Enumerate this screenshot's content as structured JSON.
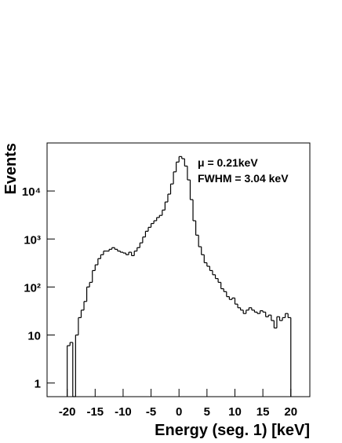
{
  "chart_data": {
    "type": "histogram",
    "xlabel": "Energy (seg. 1) [keV]",
    "ylabel": "Events",
    "annotations": [
      "μ = 0.21keV",
      "FWHM =  3.04 keV"
    ],
    "log_y": true,
    "color": "#000000",
    "bins": [
      -20,
      -19.5,
      -19,
      -18.5,
      -18,
      -17.5,
      -17,
      -16.5,
      -16,
      -15.5,
      -15,
      -14.5,
      -14,
      -13.5,
      -13,
      -12.5,
      -12,
      -11.5,
      -11,
      -10.5,
      -10,
      -9.5,
      -9,
      -8.5,
      -8,
      -7.5,
      -7,
      -6.5,
      -6,
      -5.5,
      -5,
      -4.5,
      -4,
      -3.5,
      -3,
      -2.5,
      -2,
      -1.5,
      -1,
      -0.5,
      0,
      0.5,
      1,
      1.5,
      2,
      2.5,
      3,
      3.5,
      4,
      4.5,
      5,
      5.5,
      6,
      6.5,
      7,
      7.5,
      8,
      8.5,
      9,
      9.5,
      10,
      10.5,
      11,
      11.5,
      12,
      12.5,
      13,
      13.5,
      14,
      14.5,
      15,
      15.5,
      16,
      16.5,
      17,
      17.5,
      18,
      18.5,
      19,
      19.5,
      20
    ],
    "values": [
      6,
      7,
      0,
      10,
      23,
      33,
      50,
      100,
      125,
      220,
      290,
      390,
      470,
      560,
      560,
      610,
      660,
      610,
      560,
      530,
      510,
      470,
      530,
      450,
      560,
      660,
      830,
      1100,
      1450,
      1750,
      2100,
      2400,
      2800,
      3100,
      4000,
      5900,
      8600,
      14000,
      25000,
      40000,
      52000,
      47000,
      33000,
      17000,
      6600,
      2400,
      1200,
      690,
      470,
      320,
      270,
      220,
      180,
      150,
      125,
      92,
      80,
      63,
      55,
      59,
      44,
      37,
      33,
      28,
      33,
      37,
      33,
      30,
      28,
      32,
      30,
      24,
      26,
      20,
      14,
      24,
      20,
      23,
      28,
      23
    ],
    "xlim": [
      -23.6,
      23.4
    ],
    "ylim": [
      0.52,
      100000
    ],
    "xticks": [
      -20,
      -15,
      -10,
      -5,
      0,
      5,
      10,
      15,
      20
    ],
    "yticks": [
      1,
      10,
      {
        "value": 100,
        "label": "10²"
      },
      {
        "value": 1000,
        "label": "10³"
      },
      {
        "value": 10000,
        "label": "10⁴"
      }
    ]
  }
}
